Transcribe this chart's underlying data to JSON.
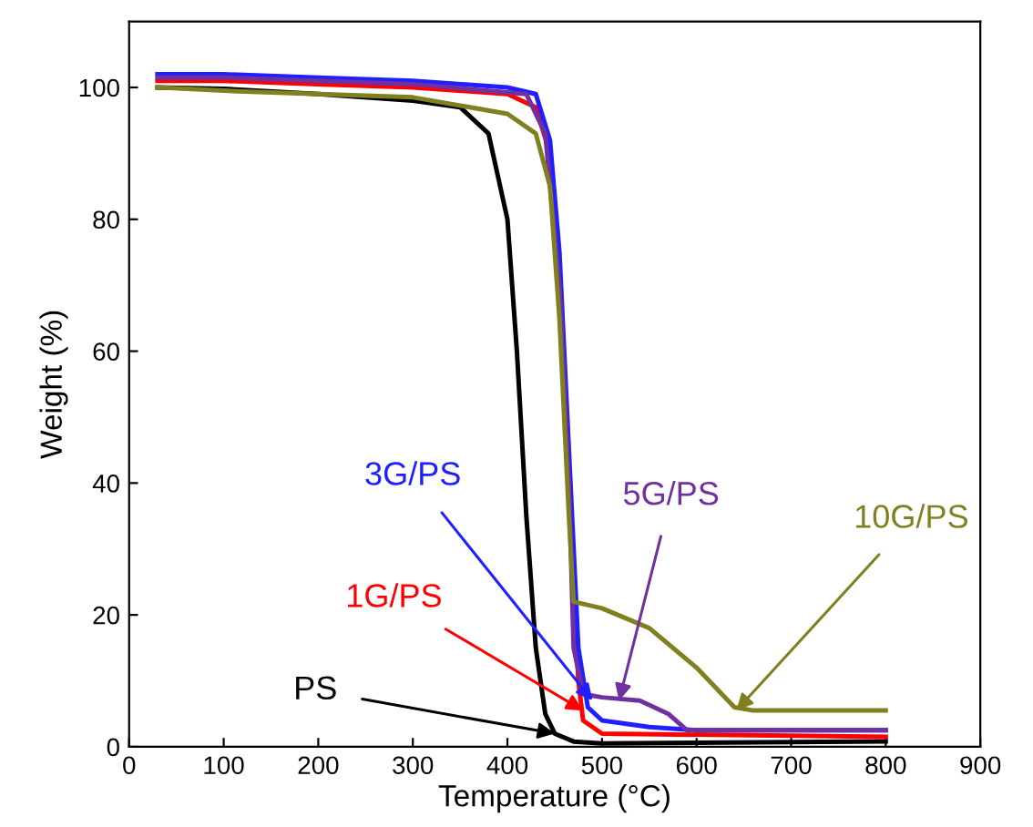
{
  "chart_data": {
    "type": "line",
    "xlabel": "Temperature (°C)",
    "ylabel": "Weight (%)",
    "xlim": [
      0,
      900
    ],
    "ylim": [
      0,
      110
    ],
    "xticks": [
      0,
      100,
      200,
      300,
      400,
      500,
      600,
      700,
      800,
      900
    ],
    "yticks": [
      0,
      20,
      40,
      60,
      80,
      100
    ],
    "grid": false,
    "legend": false,
    "marker": "none",
    "line_style": "solid",
    "series": [
      {
        "color": "#000000",
        "x": [
          30,
          100,
          200,
          300,
          350,
          380,
          400,
          410,
          420,
          430,
          440,
          450,
          470,
          500,
          800
        ],
        "values": [
          100,
          99.8,
          99,
          98,
          97,
          93,
          80,
          60,
          35,
          15,
          5,
          2,
          0.8,
          0.5,
          0.8
        ]
      },
      {
        "color": "#ff0000",
        "x": [
          30,
          100,
          200,
          300,
          400,
          430,
          445,
          455,
          465,
          475,
          480,
          500,
          800
        ],
        "values": [
          101,
          101,
          100.5,
          100,
          99,
          97,
          90,
          70,
          40,
          10,
          4,
          2,
          1.5
        ]
      },
      {
        "color": "#2020ff",
        "x": [
          30,
          100,
          200,
          300,
          400,
          430,
          445,
          455,
          465,
          475,
          485,
          500,
          550,
          600,
          800
        ],
        "values": [
          102,
          102,
          101.5,
          101,
          100,
          99,
          92,
          75,
          45,
          15,
          6,
          4,
          3,
          2.5,
          2.5
        ]
      },
      {
        "color": "#7030a0",
        "x": [
          30,
          100,
          300,
          420,
          440,
          455,
          465,
          470,
          480,
          500,
          540,
          570,
          590,
          800
        ],
        "values": [
          101.5,
          101.5,
          100.5,
          99,
          93,
          70,
          40,
          15,
          8,
          7.5,
          7,
          5,
          2.5,
          2.5
        ]
      },
      {
        "color": "#808020",
        "x": [
          30,
          100,
          200,
          300,
          400,
          430,
          445,
          455,
          465,
          470,
          500,
          550,
          600,
          640,
          660,
          800
        ],
        "values": [
          100,
          99.5,
          99,
          98.5,
          96,
          93,
          85,
          65,
          35,
          22,
          21,
          18,
          12,
          6,
          5.5,
          5.5
        ]
      }
    ],
    "annotations": [
      {
        "text": "PS",
        "x": 450,
        "y": 2
      },
      {
        "text": "1G/PS",
        "x": 480,
        "y": 5.5
      },
      {
        "text": "3G/PS",
        "x": 490,
        "y": 7
      },
      {
        "text": "5G/PS",
        "x": 518,
        "y": 7
      },
      {
        "text": "10G/PS",
        "x": 642,
        "y": 5.5
      }
    ]
  }
}
